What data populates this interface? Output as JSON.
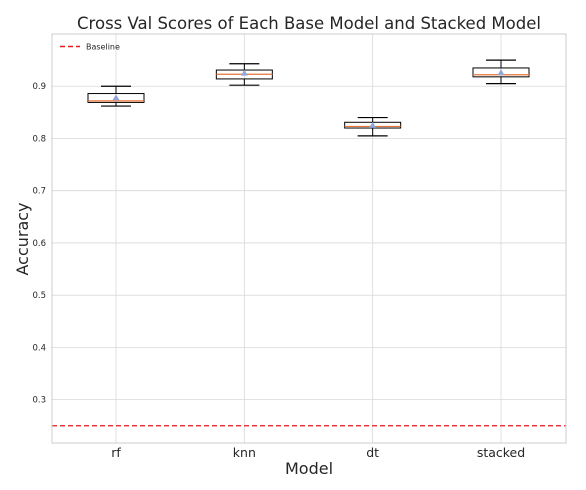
{
  "chart_data": {
    "type": "box",
    "title": "Cross Val Scores of Each Base Model and Stacked Model",
    "xlabel": "Model",
    "ylabel": "Accuracy",
    "categories": [
      "rf",
      "knn",
      "dt",
      "stacked"
    ],
    "ylim": [
      0.217,
      1.0
    ],
    "yticks": [
      0.3,
      0.4,
      0.5,
      0.6,
      0.7,
      0.8,
      0.9
    ],
    "ytick_labels": [
      "0.3",
      "0.4",
      "0.5",
      "0.6",
      "0.7",
      "0.8",
      "0.9"
    ],
    "grid": true,
    "boxes": [
      {
        "category": "rf",
        "whisker_low": 0.862,
        "q1": 0.869,
        "median": 0.872,
        "mean": 0.878,
        "q3": 0.886,
        "whisker_high": 0.9
      },
      {
        "category": "knn",
        "whisker_low": 0.902,
        "q1": 0.914,
        "median": 0.923,
        "mean": 0.925,
        "q3": 0.931,
        "whisker_high": 0.943
      },
      {
        "category": "dt",
        "whisker_low": 0.805,
        "q1": 0.82,
        "median": 0.823,
        "mean": 0.825,
        "q3": 0.831,
        "whisker_high": 0.84
      },
      {
        "category": "stacked",
        "whisker_low": 0.905,
        "q1": 0.918,
        "median": 0.922,
        "mean": 0.926,
        "q3": 0.935,
        "whisker_high": 0.95
      }
    ],
    "baseline": {
      "label": "Baseline",
      "value": 0.25,
      "color": "#e41a1c",
      "style": "dashed"
    },
    "legend": {
      "entries": [
        "Baseline"
      ],
      "placement": "top-left"
    },
    "colors": {
      "median": "#e8743b",
      "mean_marker": "#8fa8d9",
      "box_edge": "#000000",
      "grid": "#d9d9d9",
      "frame": "#cccccc"
    }
  }
}
